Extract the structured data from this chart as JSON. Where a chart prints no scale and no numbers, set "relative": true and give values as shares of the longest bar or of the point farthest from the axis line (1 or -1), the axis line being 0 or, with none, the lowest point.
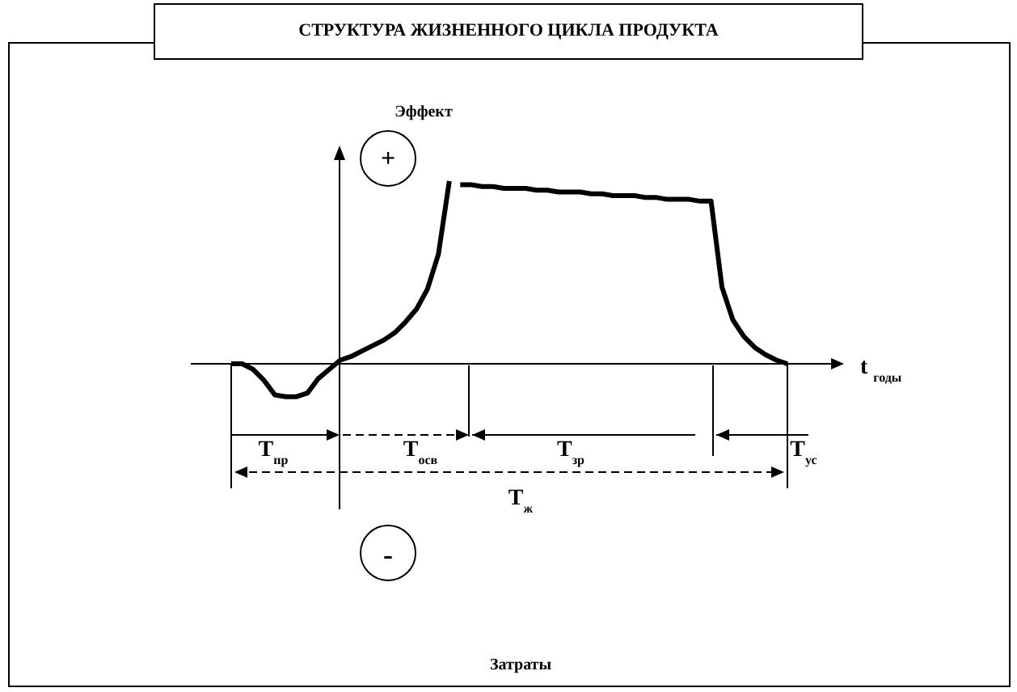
{
  "chart_data": {
    "type": "line",
    "relative": true,
    "title": "СТРУКТУРА ЖИЗНЕННОГО ЦИКЛА ПРОДУКТА",
    "xlabel": "t $_{годы}$",
    "ylabel": "Эффект",
    "categories": [
      null,
      null,
      null,
      null,
      null,
      null,
      null,
      null,
      null,
      null,
      null,
      null,
      null,
      null,
      null,
      null,
      null,
      null,
      null,
      null,
      null,
      null,
      null,
      null,
      null,
      null,
      null,
      null,
      null,
      null,
      null,
      null,
      null,
      null,
      null,
      null,
      null,
      null,
      null,
      null,
      null,
      null,
      null,
      null,
      null,
      null,
      null,
      null,
      null,
      null,
      null,
      null
    ],
    "series": [
      {
        "color": "#000000",
        "values": [
          0,
          0,
          -0.03,
          -0.09,
          -0.17,
          -0.18,
          -0.18,
          -0.16,
          -0.08,
          -0.03,
          0.02,
          0.04,
          0.07,
          0.1,
          0.13,
          0.17,
          0.23,
          0.3,
          0.41,
          0.6,
          1,
          null,
          null,
          null,
          null,
          null,
          null,
          null,
          null,
          null,
          null,
          null,
          null,
          null,
          null,
          null,
          null,
          null,
          null,
          null,
          null,
          null,
          null,
          null,
          null,
          null,
          null,
          null,
          null,
          null,
          null,
          null
        ]
      },
      {
        "color": "#000000",
        "values": [
          null,
          null,
          null,
          null,
          null,
          null,
          null,
          null,
          null,
          null,
          null,
          null,
          null,
          null,
          null,
          null,
          null,
          null,
          null,
          null,
          null,
          0.98,
          0.98,
          0.97,
          0.97,
          0.96,
          0.96,
          0.96,
          0.95,
          0.95,
          0.94,
          0.94,
          0.94,
          0.93,
          0.93,
          0.92,
          0.92,
          0.92,
          0.91,
          0.91,
          0.9,
          0.9,
          0.9,
          0.89,
          0.89,
          0.42,
          0.24,
          0.15,
          0.09,
          0.05,
          0.02,
          0
        ]
      }
    ],
    "annotations": [
      "+",
      "-",
      "Т$_{пр}$",
      "Т$_{осв}$",
      "Т$_{зр}$",
      "Т$_{ус}$",
      "Т$_{ж}$",
      "Затраты"
    ]
  }
}
